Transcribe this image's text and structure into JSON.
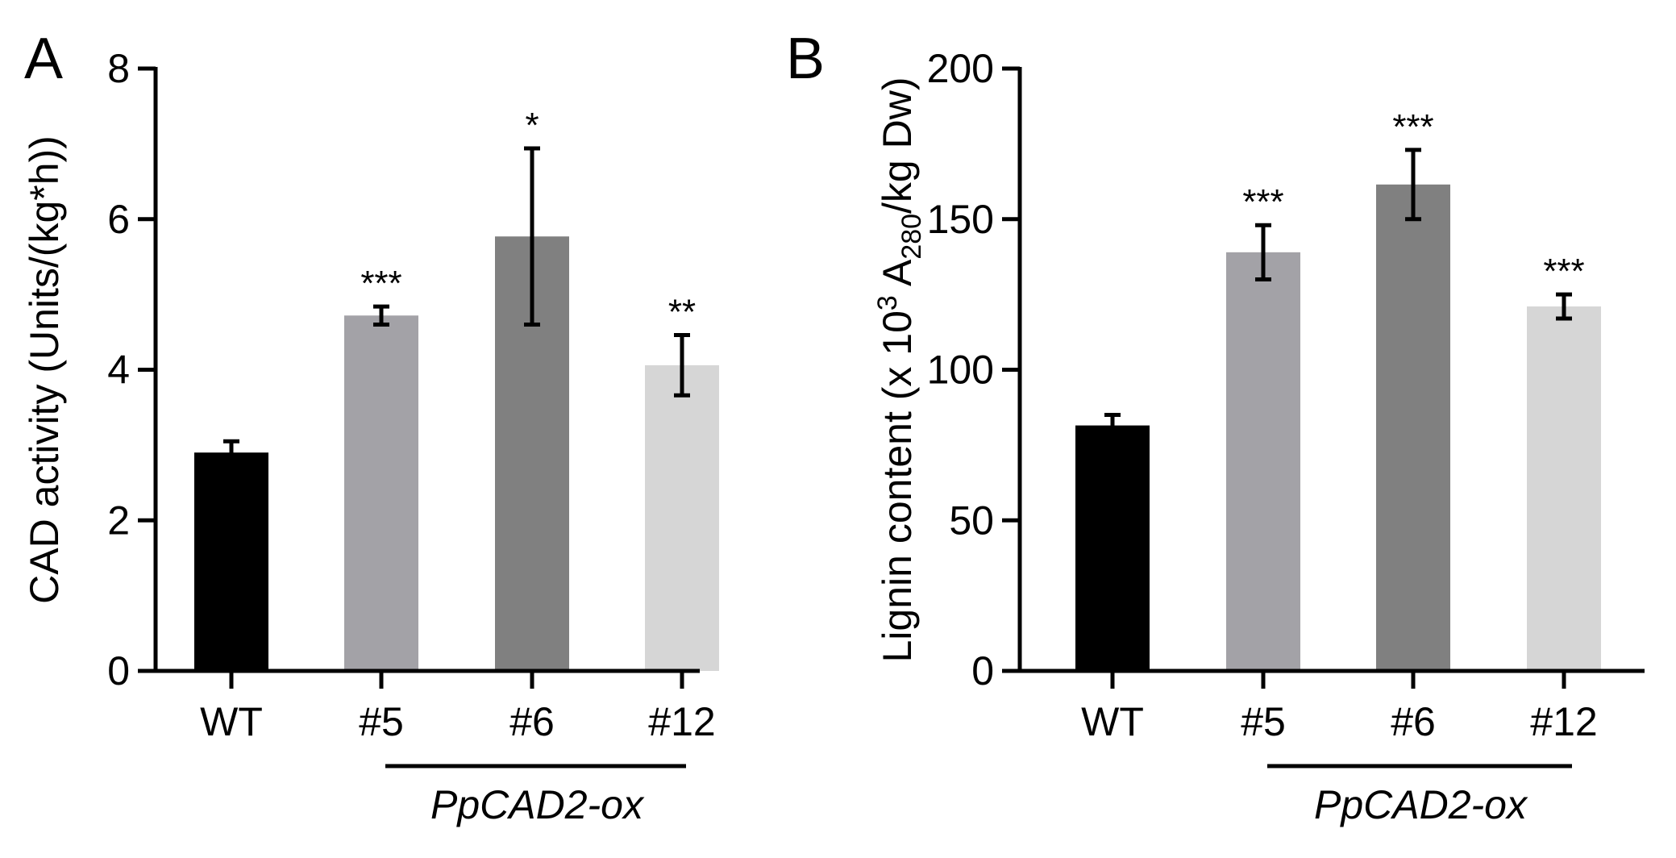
{
  "chart_data": [
    {
      "type": "bar",
      "panel": "A",
      "ylabel": "CAD activity (Units/(kg*h))",
      "ylim": [
        0,
        8
      ],
      "yticks": [
        0,
        2,
        4,
        6,
        8
      ],
      "categories": [
        "WT",
        "#5",
        "#6",
        "#12"
      ],
      "values": [
        2.9,
        4.72,
        5.77,
        4.06
      ],
      "errors": [
        0.15,
        0.12,
        1.17,
        0.4
      ],
      "significance": [
        "",
        "***",
        "*",
        "**"
      ],
      "colors": [
        "#000000",
        "#a3a2a7",
        "#808080",
        "#d6d6d6"
      ],
      "group": {
        "label": "PpCAD2-ox",
        "from": 1,
        "to": 3
      }
    },
    {
      "type": "bar",
      "panel": "B",
      "ylabel": "Lignin content (x 10",
      "ylabel_sup": "3",
      "ylabel_mid": " A",
      "ylabel_sub": "280",
      "ylabel_end": "/kg Dw)",
      "ylim": [
        0,
        200
      ],
      "yticks": [
        0,
        50,
        100,
        150,
        200
      ],
      "categories": [
        "WT",
        "#5",
        "#6",
        "#12"
      ],
      "values": [
        81.5,
        139,
        161.5,
        121
      ],
      "errors": [
        3.5,
        9,
        11.5,
        4
      ],
      "significance": [
        "",
        "***",
        "***",
        "***"
      ],
      "colors": [
        "#000000",
        "#a3a2a7",
        "#808080",
        "#d6d6d6"
      ],
      "group": {
        "label": "PpCAD2-ox",
        "from": 1,
        "to": 3
      }
    }
  ]
}
